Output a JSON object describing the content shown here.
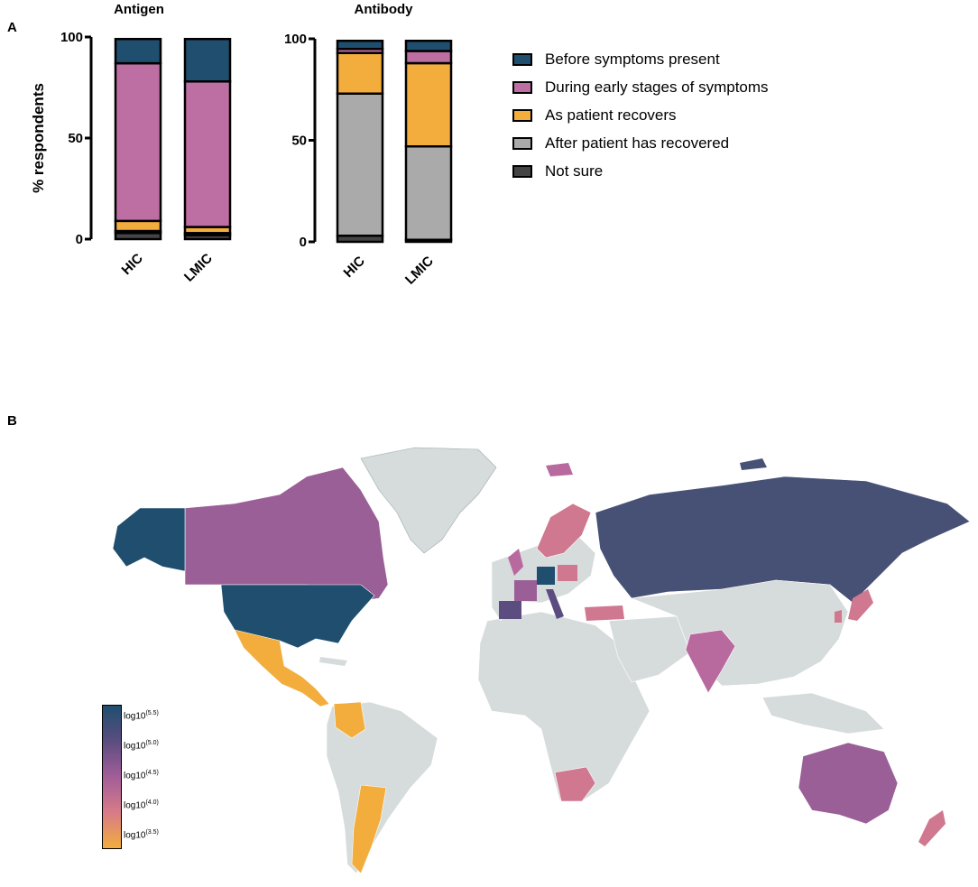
{
  "panels": {
    "a": "A",
    "b": "B"
  },
  "chart_data": [
    {
      "type": "bar",
      "stacked": true,
      "title": "Antigen",
      "ylabel": "% respondents",
      "ylim": [
        0,
        100
      ],
      "yticks": [
        0,
        50,
        100
      ],
      "categories": [
        "HIC",
        "LMIC"
      ],
      "series": [
        {
          "name": "Not sure",
          "values": [
            3,
            2
          ]
        },
        {
          "name": "After patient has recovered",
          "values": [
            1,
            1
          ]
        },
        {
          "name": "As patient recovers",
          "values": [
            5,
            3
          ]
        },
        {
          "name": "During early stages of symptoms",
          "values": [
            78,
            72
          ]
        },
        {
          "name": "Before symptoms present",
          "values": [
            12,
            21
          ]
        }
      ]
    },
    {
      "type": "bar",
      "stacked": true,
      "title": "Antibody",
      "ylabel": "",
      "ylim": [
        0,
        100
      ],
      "yticks": [
        0,
        50,
        100
      ],
      "categories": [
        "HIC",
        "LMIC"
      ],
      "series": [
        {
          "name": "Not sure",
          "values": [
            3,
            1
          ]
        },
        {
          "name": "After patient has recovered",
          "values": [
            70,
            46
          ]
        },
        {
          "name": "As patient recovers",
          "values": [
            20,
            41
          ]
        },
        {
          "name": "During early stages of symptoms",
          "values": [
            2,
            6
          ]
        },
        {
          "name": "Before symptoms present",
          "values": [
            4,
            5
          ]
        }
      ]
    }
  ],
  "legend": {
    "placement": "right",
    "items": [
      {
        "label": "Before symptoms present",
        "color": "#1f4e6e"
      },
      {
        "label": "During early stages of symptoms",
        "color": "#bd6ea2"
      },
      {
        "label": "As patient recovers",
        "color": "#f2ad3d"
      },
      {
        "label": "After patient has recovered",
        "color": "#aaaaaa"
      },
      {
        "label": "Not sure",
        "color": "#444444"
      }
    ]
  },
  "series_colors": {
    "Before symptoms present": "#1f4e6e",
    "During early stages of symptoms": "#bd6ea2",
    "As patient recovers": "#f2ad3d",
    "After patient has recovered": "#aaaaaa",
    "Not sure": "#444444"
  },
  "map": {
    "type": "choropleth",
    "colorbar": {
      "labels": [
        {
          "base": "log10",
          "exp": "(5.5)"
        },
        {
          "base": "log10",
          "exp": "(5.0)"
        },
        {
          "base": "log10",
          "exp": "(4.5)"
        },
        {
          "base": "log10",
          "exp": "(4.0)"
        },
        {
          "base": "log10",
          "exp": "(3.5)"
        }
      ],
      "colors": [
        "#1f4e6e",
        "#5b4d80",
        "#a25e98",
        "#d77b88",
        "#f2ad3d"
      ]
    },
    "colors": {
      "navy": "#1f4e6e",
      "indigo": "#475175",
      "purple": "#9a5f97",
      "magenta": "#b86a9f",
      "rose": "#cf7890",
      "orange": "#f2ad3d",
      "gray": "#d6dbdc"
    }
  }
}
